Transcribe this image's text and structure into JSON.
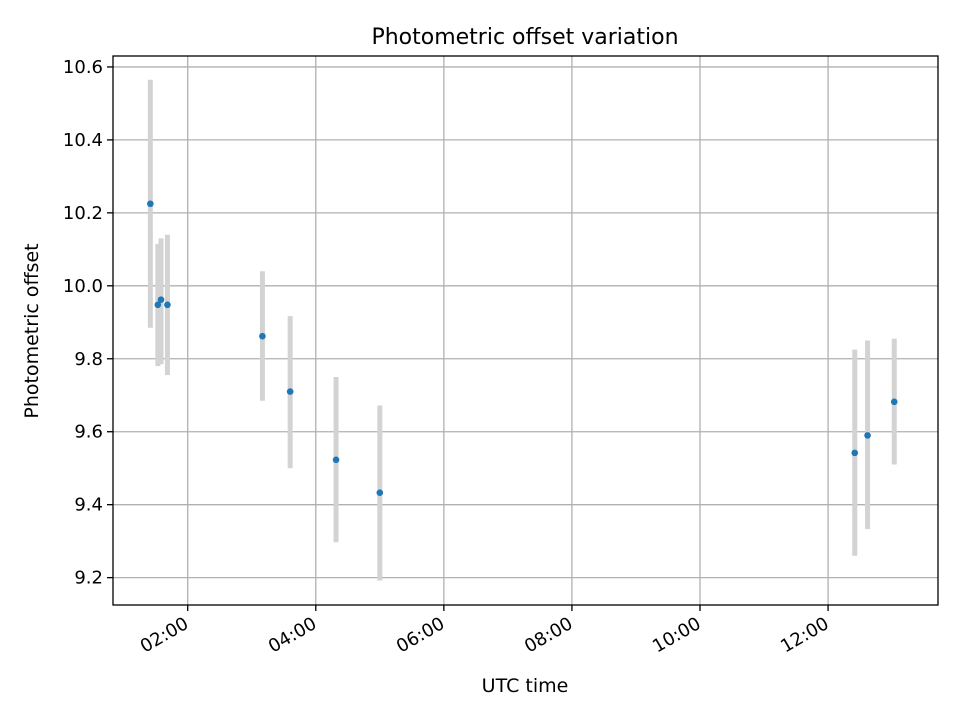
{
  "chart_data": {
    "type": "scatter",
    "title": "Photometric offset variation",
    "xlabel": "UTC time",
    "ylabel": "Photometric offset",
    "xlim": [
      "00:50",
      "13:43"
    ],
    "ylim": [
      9.125,
      10.63
    ],
    "grid": true,
    "x_ticks": [
      "02:00",
      "04:00",
      "06:00",
      "08:00",
      "10:00",
      "12:00"
    ],
    "y_ticks": [
      9.2,
      9.4,
      9.6,
      9.8,
      10.0,
      10.2,
      10.4,
      10.6
    ],
    "y_tick_labels": [
      "9.2",
      "9.4",
      "9.6",
      "9.8",
      "10.0",
      "10.2",
      "10.4",
      "10.6"
    ],
    "errorbar_color": "#d3d3d3",
    "point_color": "#1f77b4",
    "series": [
      {
        "points": [
          {
            "x": "01:25",
            "y": 10.225,
            "ylow": 9.885,
            "yhigh": 10.565
          },
          {
            "x": "01:32",
            "y": 9.948,
            "ylow": 9.78,
            "yhigh": 10.115
          },
          {
            "x": "01:35",
            "y": 9.962,
            "ylow": 9.785,
            "yhigh": 10.13
          },
          {
            "x": "01:41",
            "y": 9.948,
            "ylow": 9.755,
            "yhigh": 10.14
          },
          {
            "x": "03:10",
            "y": 9.862,
            "ylow": 9.685,
            "yhigh": 10.04
          },
          {
            "x": "03:36",
            "y": 9.71,
            "ylow": 9.5,
            "yhigh": 9.917
          },
          {
            "x": "04:19",
            "y": 9.523,
            "ylow": 9.297,
            "yhigh": 9.75
          },
          {
            "x": "05:00",
            "y": 9.433,
            "ylow": 9.192,
            "yhigh": 9.672
          },
          {
            "x": "12:25",
            "y": 9.542,
            "ylow": 9.26,
            "yhigh": 9.825
          },
          {
            "x": "12:37",
            "y": 9.59,
            "ylow": 9.333,
            "yhigh": 9.85
          },
          {
            "x": "13:02",
            "y": 9.682,
            "ylow": 9.51,
            "yhigh": 9.855
          }
        ]
      }
    ]
  }
}
